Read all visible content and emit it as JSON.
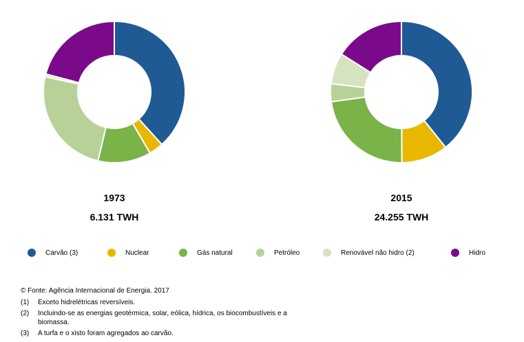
{
  "chart_data": [
    {
      "type": "pie",
      "donut": true,
      "title": "1973",
      "subtitle": "6.131 TWH",
      "categories": [
        "Carvão (3)",
        "Nuclear",
        "Gás natural",
        "Petróleo",
        "Renovável não hidro (2)",
        "Hidro"
      ],
      "values": [
        38.3,
        3.3,
        12.1,
        24.8,
        0.6,
        20.9
      ],
      "unit": "%"
    },
    {
      "type": "pie",
      "donut": true,
      "title": "2015",
      "subtitle": "24.255 TWH",
      "categories": [
        "Carvão (3)",
        "Nuclear",
        "Gás natural",
        "Petróleo",
        "Renovável não hidro (2)",
        "Hidro"
      ],
      "values": [
        39.3,
        10.6,
        22.9,
        4.1,
        7.1,
        16.0
      ],
      "unit": "%"
    }
  ],
  "legend": [
    {
      "label": "Carvão (3)",
      "color": "#1f5a94"
    },
    {
      "label": "Nuclear",
      "color": "#e8b800"
    },
    {
      "label": "Gás natural",
      "color": "#7ab348"
    },
    {
      "label": "Petróleo",
      "color": "#b8d198"
    },
    {
      "label": "Renovável não hidro (2)",
      "color": "#d5e3bf"
    },
    {
      "label": "Hidro",
      "color": "#7b0a8a"
    }
  ],
  "source": "© Fonte: Agência Internacional de Energia. 2017",
  "notes": [
    {
      "num": "(1)",
      "text": "Exceto hidrelétricas reversíveis."
    },
    {
      "num": "(2)",
      "text": " Incluindo-se as energias geotérmica, solar, eólica, hídrica, os biocombustíveis e a biomassa."
    },
    {
      "num": "(3)",
      "text": "A turfa e o xisto foram agregados ao carvão."
    }
  ]
}
